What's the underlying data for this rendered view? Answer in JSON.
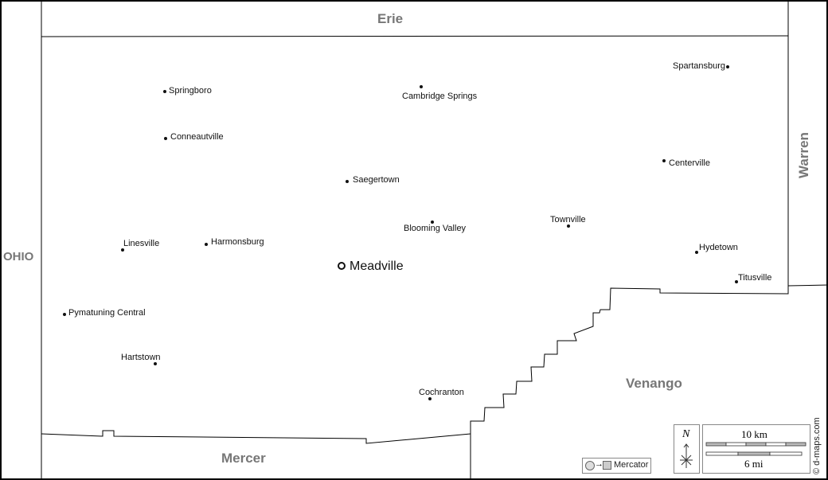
{
  "regions": {
    "north": "Erie",
    "east": "Warren",
    "west": "OHIO",
    "south": "Mercer",
    "southeast": "Venango"
  },
  "seat": {
    "name": "Meadville"
  },
  "towns": [
    {
      "name": "Springboro"
    },
    {
      "name": "Cambridge Springs"
    },
    {
      "name": "Spartansburg"
    },
    {
      "name": "Conneautville"
    },
    {
      "name": "Centerville"
    },
    {
      "name": "Saegertown"
    },
    {
      "name": "Blooming Valley"
    },
    {
      "name": "Townville"
    },
    {
      "name": "Linesville"
    },
    {
      "name": "Harmonsburg"
    },
    {
      "name": "Hydetown"
    },
    {
      "name": "Titusville"
    },
    {
      "name": "Pymatuning Central"
    },
    {
      "name": "Hartstown"
    },
    {
      "name": "Cochranton"
    }
  ],
  "legend": {
    "projection": "Mercator",
    "north": "N",
    "scale_km": "10 km",
    "scale_mi": "6 mi",
    "credit": "© d-maps.com"
  },
  "colors": {
    "border": "#000000",
    "region_label": "#777777",
    "scale_fill": "#bbbbbb"
  }
}
